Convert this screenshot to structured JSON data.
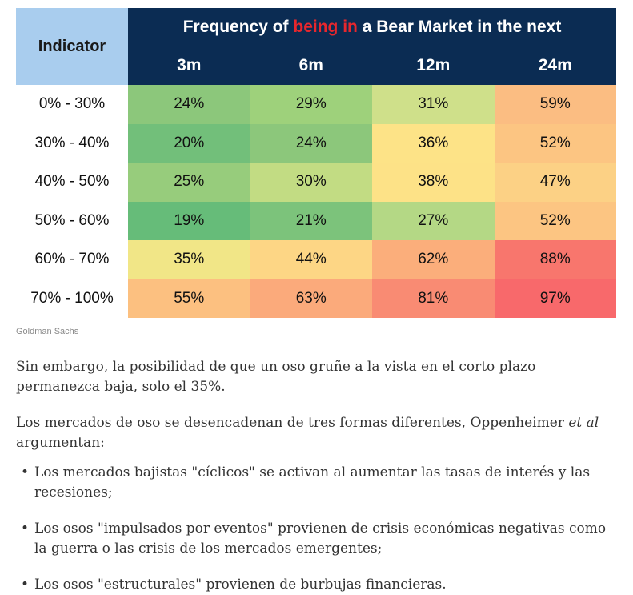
{
  "table": {
    "indicator_header": "Indicator",
    "title_pre": "Frequency of ",
    "title_highlight": "being in",
    "title_post": " a Bear Market in the next",
    "periods": [
      "3m",
      "6m",
      "12m",
      "24m"
    ],
    "rows": [
      {
        "label": "0% - 30%",
        "values": [
          "24%",
          "29%",
          "31%",
          "59%"
        ],
        "colors": [
          "#8cc77b",
          "#9ed17b",
          "#cfe08a",
          "#fbbd82"
        ]
      },
      {
        "label": "30% - 40%",
        "values": [
          "20%",
          "24%",
          "36%",
          "52%"
        ],
        "colors": [
          "#72bf7a",
          "#8cc77b",
          "#fde387",
          "#fcc582"
        ]
      },
      {
        "label": "40% - 50%",
        "values": [
          "25%",
          "30%",
          "38%",
          "47%"
        ],
        "colors": [
          "#97cc7c",
          "#c2dc83",
          "#fde287",
          "#fcd185"
        ]
      },
      {
        "label": "50% - 60%",
        "values": [
          "19%",
          "21%",
          "27%",
          "52%"
        ],
        "colors": [
          "#66bc79",
          "#7cc37b",
          "#b4d885",
          "#fcc582"
        ]
      },
      {
        "label": "60% - 70%",
        "values": [
          "35%",
          "44%",
          "62%",
          "88%"
        ],
        "colors": [
          "#f1e687",
          "#fdd685",
          "#fbae7b",
          "#f8766d"
        ]
      },
      {
        "label": "70% - 100%",
        "values": [
          "55%",
          "63%",
          "81%",
          "97%"
        ],
        "colors": [
          "#fcc080",
          "#fbaa7b",
          "#f98b73",
          "#f8696b"
        ]
      }
    ]
  },
  "source": "Goldman Sachs",
  "paragraph1": "Sin embargo, la posibilidad de que un oso gruñe a la vista en el corto plazo permanezca baja, solo el 35%.",
  "paragraph2": {
    "pre": "Los mercados de oso se desencadenan de tres formas diferentes, Oppenheimer ",
    "em": "et al",
    "post": " argumentan:"
  },
  "bullet_char": "•",
  "bullets": [
    "Los mercados bajistas \"cíclicos\" se activan al aumentar las tasas de interés y las recesiones;",
    "Los osos \"impulsados por eventos\" provienen de crisis económicas negativas como la guerra o las crisis de los mercados emergentes;",
    "Los osos \"estructurales\" provienen de burbujas financieras."
  ]
}
